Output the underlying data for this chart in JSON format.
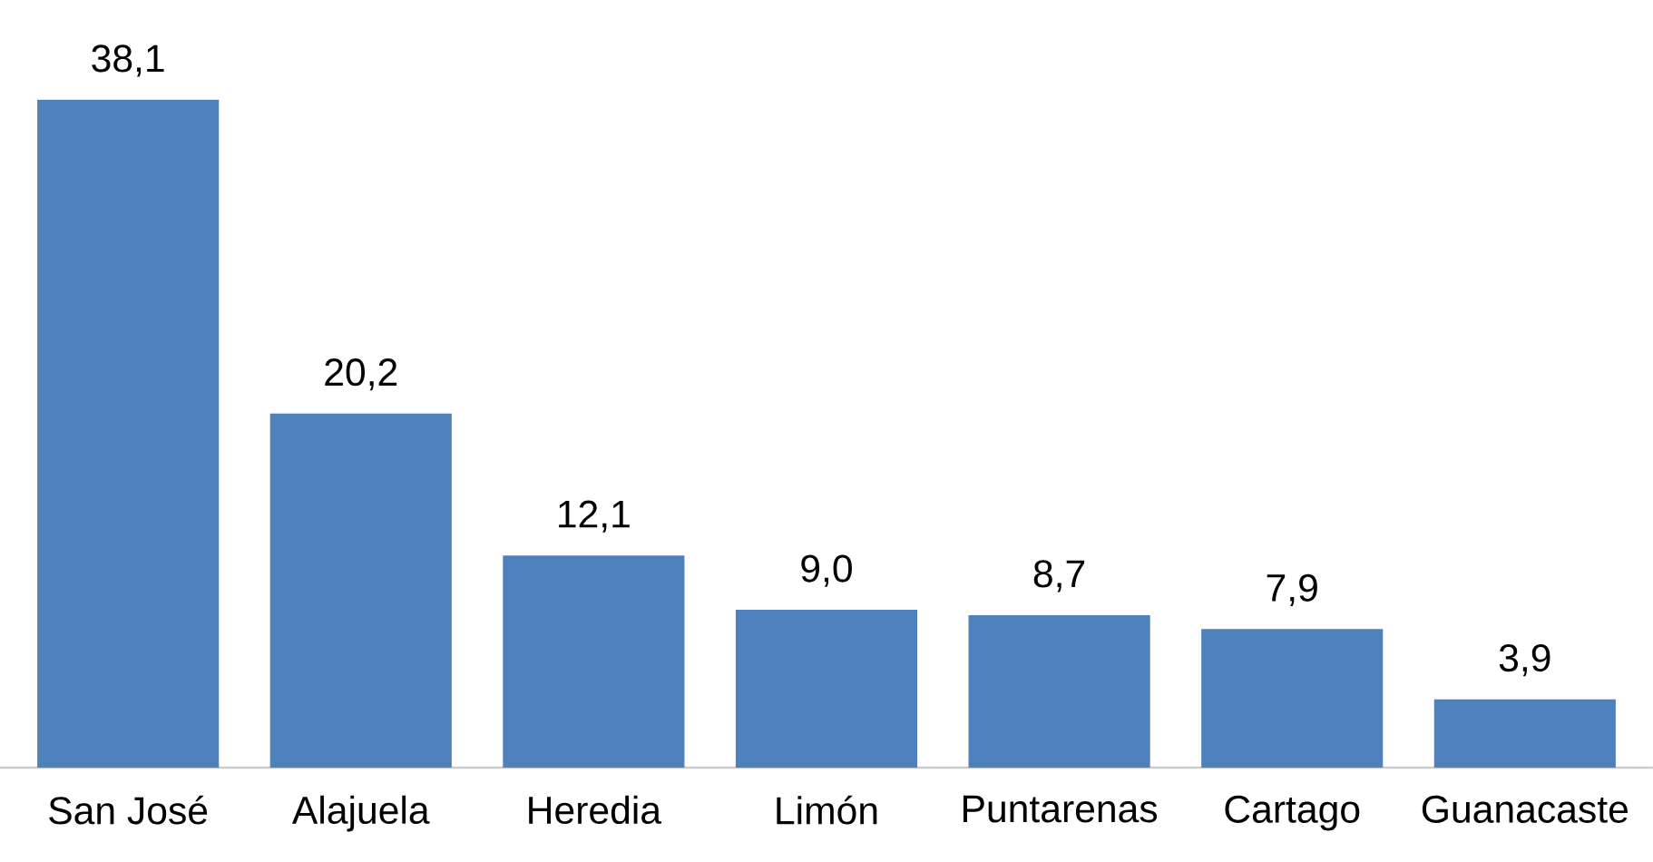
{
  "chart_data": {
    "type": "bar",
    "color": "#4f81bd",
    "categories": [
      "San José",
      "Alajuela",
      "Heredia",
      "Limón",
      "Puntarenas",
      "Cartago",
      "Guanacaste"
    ],
    "values": [
      38.1,
      20.2,
      12.1,
      9.0,
      8.7,
      7.9,
      3.9
    ],
    "value_labels": [
      "38,1",
      "20,2",
      "12,1",
      "9,0",
      "8,7",
      "7,9",
      "3,9"
    ]
  }
}
